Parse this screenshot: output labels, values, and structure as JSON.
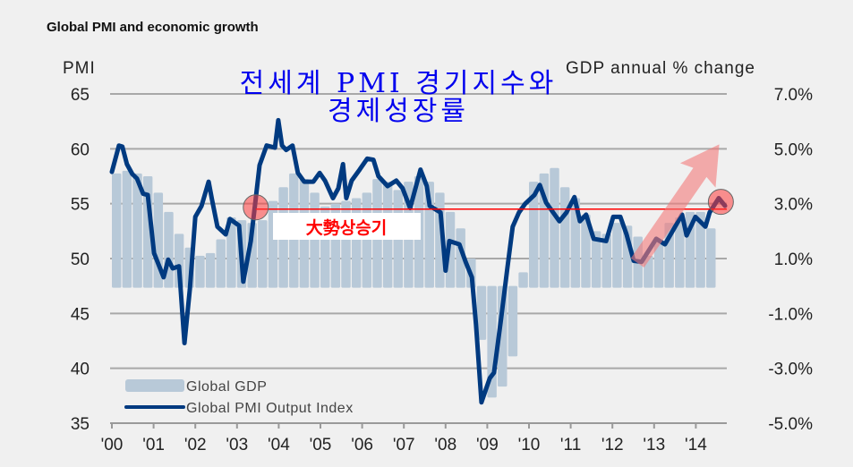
{
  "chart_data": {
    "type": "bar+line",
    "title": "Global PMI and economic growth",
    "left_axis": {
      "label": "PMI",
      "range": [
        35,
        65
      ],
      "ticks": [
        "65",
        "60",
        "55",
        "50",
        "45",
        "40",
        "35"
      ],
      "tick_values": [
        65,
        60,
        55,
        50,
        45,
        40,
        35
      ]
    },
    "right_axis": {
      "label": "GDP annual % change",
      "range": [
        -5,
        7
      ],
      "ticks": [
        "7.0%",
        "5.0%",
        "3.0%",
        "1.0%",
        "-1.0%",
        "-3.0%",
        "-5.0%"
      ],
      "tick_values": [
        7,
        5,
        3,
        1,
        -1,
        -3,
        -5
      ]
    },
    "x_axis": {
      "range": [
        2000,
        2014.8
      ],
      "ticks": [
        "'00",
        "'01",
        "'02",
        "'03",
        "'04",
        "'05",
        "'06",
        "'07",
        "'08",
        "'09",
        "'10",
        "'11",
        "'12",
        "'13",
        "'14"
      ]
    },
    "grid": true,
    "legend": {
      "position": "bottom-left",
      "entries": [
        "Global GDP",
        "Global PMI Output Index"
      ]
    },
    "series": [
      {
        "name": "Global GDP",
        "type": "bar",
        "axis": "right",
        "color": "#b8c9d8",
        "start": 2000,
        "step": 0.25,
        "values": [
          4.1,
          4.2,
          4.1,
          4.0,
          3.4,
          2.7,
          1.9,
          1.4,
          1.1,
          1.2,
          1.7,
          2.5,
          2.4,
          2.3,
          2.4,
          3.1,
          3.6,
          4.1,
          3.9,
          3.4,
          2.9,
          3.0,
          3.1,
          3.2,
          3.4,
          3.9,
          3.8,
          3.5,
          3.8,
          4.0,
          3.8,
          3.4,
          2.7,
          2.1,
          1.0,
          -1.9,
          -4.0,
          -3.6,
          -2.5,
          0.5,
          3.8,
          4.1,
          4.3,
          3.6,
          3.2,
          2.6,
          2.0,
          1.9,
          2.3,
          2.2,
          1.8,
          1.1,
          1.6,
          2.3,
          2.5,
          2.7,
          2.7,
          2.1
        ]
      },
      {
        "name": "Global PMI Output Index",
        "type": "line",
        "axis": "left",
        "color": "#003a80",
        "points": [
          [
            2000.0,
            57.9
          ],
          [
            2000.17,
            60.3
          ],
          [
            2000.25,
            60.2
          ],
          [
            2000.36,
            58.6
          ],
          [
            2000.49,
            57.7
          ],
          [
            2000.6,
            57.3
          ],
          [
            2000.75,
            55.9
          ],
          [
            2000.86,
            55.8
          ],
          [
            2001.01,
            50.5
          ],
          [
            2001.24,
            48.3
          ],
          [
            2001.35,
            49.9
          ],
          [
            2001.46,
            49.1
          ],
          [
            2001.61,
            49.3
          ],
          [
            2001.74,
            42.3
          ],
          [
            2001.87,
            47.2
          ],
          [
            2002.0,
            53.8
          ],
          [
            2002.15,
            54.8
          ],
          [
            2002.32,
            57.0
          ],
          [
            2002.4,
            55.4
          ],
          [
            2002.53,
            52.9
          ],
          [
            2002.73,
            52.2
          ],
          [
            2002.83,
            53.6
          ],
          [
            2003.05,
            53.0
          ],
          [
            2003.15,
            47.9
          ],
          [
            2003.33,
            51.6
          ],
          [
            2003.43,
            54.8
          ],
          [
            2003.54,
            58.5
          ],
          [
            2003.71,
            60.3
          ],
          [
            2003.91,
            60.1
          ],
          [
            2003.99,
            62.6
          ],
          [
            2004.08,
            60.3
          ],
          [
            2004.18,
            59.9
          ],
          [
            2004.33,
            60.3
          ],
          [
            2004.46,
            57.8
          ],
          [
            2004.61,
            57.0
          ],
          [
            2004.83,
            57.0
          ],
          [
            2004.98,
            57.8
          ],
          [
            2005.11,
            57.1
          ],
          [
            2005.3,
            55.5
          ],
          [
            2005.43,
            56.4
          ],
          [
            2005.54,
            58.6
          ],
          [
            2005.62,
            55.5
          ],
          [
            2005.75,
            57.1
          ],
          [
            2005.94,
            58.1
          ],
          [
            2006.12,
            59.1
          ],
          [
            2006.27,
            59.0
          ],
          [
            2006.39,
            57.5
          ],
          [
            2006.61,
            56.6
          ],
          [
            2006.82,
            57.1
          ],
          [
            2006.97,
            56.4
          ],
          [
            2007.15,
            54.6
          ],
          [
            2007.4,
            58.1
          ],
          [
            2007.55,
            56.6
          ],
          [
            2007.62,
            54.8
          ],
          [
            2007.88,
            54.2
          ],
          [
            2008.0,
            48.9
          ],
          [
            2008.09,
            51.6
          ],
          [
            2008.33,
            51.3
          ],
          [
            2008.48,
            49.7
          ],
          [
            2008.63,
            48.3
          ],
          [
            2008.73,
            44.0
          ],
          [
            2008.86,
            36.9
          ],
          [
            2009.06,
            39.1
          ],
          [
            2009.16,
            39.6
          ],
          [
            2009.33,
            44.5
          ],
          [
            2009.48,
            49.1
          ],
          [
            2009.61,
            52.9
          ],
          [
            2009.76,
            54.2
          ],
          [
            2009.91,
            55.0
          ],
          [
            2010.13,
            55.8
          ],
          [
            2010.26,
            56.7
          ],
          [
            2010.41,
            55.1
          ],
          [
            2010.73,
            53.4
          ],
          [
            2010.9,
            54.2
          ],
          [
            2011.09,
            55.6
          ],
          [
            2011.22,
            53.4
          ],
          [
            2011.37,
            54.0
          ],
          [
            2011.55,
            51.8
          ],
          [
            2011.85,
            51.6
          ],
          [
            2012.02,
            53.8
          ],
          [
            2012.19,
            53.8
          ],
          [
            2012.34,
            52.2
          ],
          [
            2012.51,
            49.8
          ],
          [
            2012.7,
            49.7
          ],
          [
            2013.05,
            51.8
          ],
          [
            2013.26,
            51.3
          ],
          [
            2013.67,
            54.0
          ],
          [
            2013.78,
            52.1
          ],
          [
            2013.99,
            53.8
          ],
          [
            2014.23,
            52.9
          ],
          [
            2014.33,
            54.2
          ],
          [
            2014.55,
            55.5
          ],
          [
            2014.7,
            54.8
          ]
        ]
      }
    ],
    "annotations": {
      "title_line1": "전세계 PMI 경기지수와",
      "title_line2": "경제성장률",
      "callout": "大勢상승기",
      "reference_level_pmi": 54.5,
      "marker_points": [
        [
          2003.45,
          54.5
        ],
        [
          2014.6,
          55.0
        ]
      ],
      "trend_arrow": {
        "from": [
          2012.6,
          49.6
        ],
        "to": [
          2016.6,
          60.4
        ]
      },
      "annotation_color": "#ff0000"
    }
  }
}
